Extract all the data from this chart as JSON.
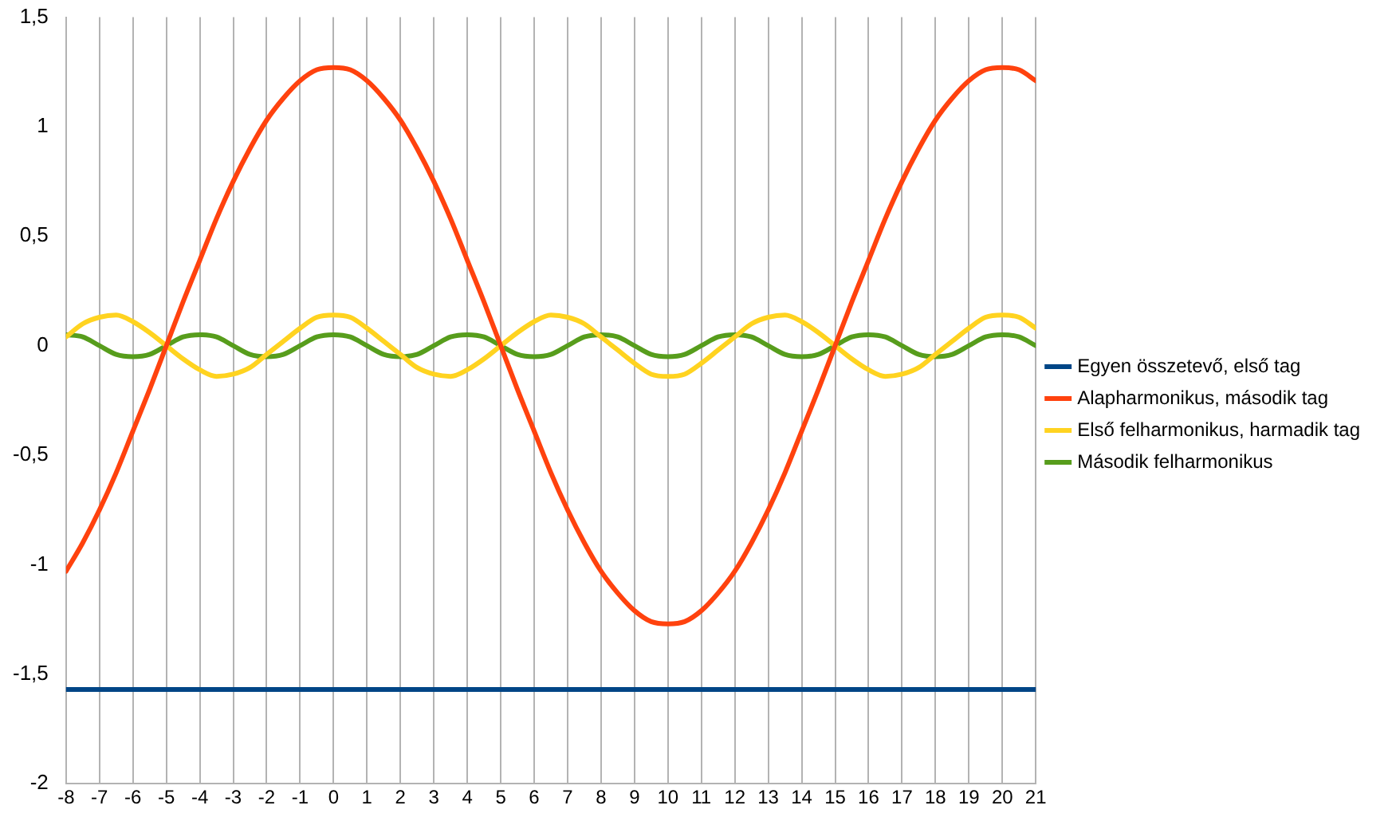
{
  "chart_data": {
    "type": "line",
    "x": [
      -8,
      -7.5,
      -7,
      -6.5,
      -6,
      -5.5,
      -5,
      -4.5,
      -4,
      -3.5,
      -3,
      -2.5,
      -2,
      -1.5,
      -1,
      -0.5,
      0,
      0.5,
      1,
      1.5,
      2,
      2.5,
      3,
      3.5,
      4,
      4.5,
      5,
      5.5,
      6,
      6.5,
      7,
      7.5,
      8,
      8.5,
      9,
      9.5,
      10,
      10.5,
      11,
      11.5,
      12,
      12.5,
      13,
      13.5,
      14,
      14.5,
      15,
      15.5,
      16,
      16.5,
      17,
      17.5,
      18,
      18.5,
      19,
      19.5,
      20,
      20.5,
      21
    ],
    "series": [
      {
        "name": "Egyen összetevő, első tag",
        "color": "#004586",
        "values": [
          -1.57,
          -1.57,
          -1.57,
          -1.57,
          -1.57,
          -1.57,
          -1.57,
          -1.57,
          -1.57,
          -1.57,
          -1.57,
          -1.57,
          -1.57,
          -1.57,
          -1.57,
          -1.57,
          -1.57,
          -1.57,
          -1.57,
          -1.57,
          -1.57,
          -1.57,
          -1.57,
          -1.57,
          -1.57,
          -1.57,
          -1.57,
          -1.57,
          -1.57,
          -1.57,
          -1.57,
          -1.57,
          -1.57,
          -1.57,
          -1.57,
          -1.57,
          -1.57,
          -1.57,
          -1.57,
          -1.57,
          -1.57,
          -1.57,
          -1.57,
          -1.57,
          -1.57,
          -1.57,
          -1.57,
          -1.57,
          -1.57,
          -1.57,
          -1.57,
          -1.57,
          -1.57,
          -1.57,
          -1.57,
          -1.57,
          -1.57,
          -1.57,
          -1.57
        ]
      },
      {
        "name": "Alapharmonikus, második tag",
        "color": "#ff420e",
        "values": [
          -1.03,
          -0.9,
          -0.75,
          -0.58,
          -0.39,
          -0.2,
          0,
          0.2,
          0.39,
          0.58,
          0.75,
          0.9,
          1.03,
          1.13,
          1.21,
          1.26,
          1.27,
          1.26,
          1.21,
          1.13,
          1.03,
          0.9,
          0.75,
          0.58,
          0.39,
          0.2,
          0,
          -0.2,
          -0.39,
          -0.58,
          -0.75,
          -0.9,
          -1.03,
          -1.13,
          -1.21,
          -1.26,
          -1.27,
          -1.26,
          -1.21,
          -1.13,
          -1.03,
          -0.9,
          -0.75,
          -0.58,
          -0.39,
          -0.2,
          0,
          0.2,
          0.39,
          0.58,
          0.75,
          0.9,
          1.03,
          1.13,
          1.21,
          1.26,
          1.27,
          1.26,
          1.21
        ]
      },
      {
        "name": "Első felharmonikus, harmadik tag",
        "color": "#ffd320",
        "values": [
          0.04,
          0.1,
          0.13,
          0.14,
          0.11,
          0.06,
          0,
          -0.06,
          -0.11,
          -0.14,
          -0.13,
          -0.1,
          -0.04,
          0.02,
          0.08,
          0.13,
          0.14,
          0.13,
          0.08,
          0.02,
          -0.04,
          -0.1,
          -0.13,
          -0.14,
          -0.11,
          -0.06,
          0,
          0.06,
          0.11,
          0.14,
          0.13,
          0.1,
          0.04,
          -0.02,
          -0.08,
          -0.13,
          -0.14,
          -0.13,
          -0.08,
          -0.02,
          0.04,
          0.1,
          0.13,
          0.14,
          0.11,
          0.06,
          0,
          -0.06,
          -0.11,
          -0.14,
          -0.13,
          -0.1,
          -0.04,
          0.02,
          0.08,
          0.13,
          0.14,
          0.13,
          0.08
        ]
      },
      {
        "name": "Második felharmonikus",
        "color": "#579d1c",
        "values": [
          0.05,
          0.04,
          0,
          -0.04,
          -0.05,
          -0.04,
          0,
          0.04,
          0.05,
          0.04,
          0,
          -0.04,
          -0.05,
          -0.04,
          0,
          0.04,
          0.05,
          0.04,
          0,
          -0.04,
          -0.05,
          -0.04,
          0,
          0.04,
          0.05,
          0.04,
          0,
          -0.04,
          -0.05,
          -0.04,
          0,
          0.04,
          0.05,
          0.04,
          0,
          -0.04,
          -0.05,
          -0.04,
          0,
          0.04,
          0.05,
          0.04,
          0,
          -0.04,
          -0.05,
          -0.04,
          0,
          0.04,
          0.05,
          0.04,
          0,
          -0.04,
          -0.05,
          -0.04,
          0,
          0.04,
          0.05,
          0.04,
          0
        ]
      }
    ],
    "xlim": [
      -8,
      21
    ],
    "xticks": [
      -8,
      -7,
      -6,
      -5,
      -4,
      -3,
      -2,
      -1,
      0,
      1,
      2,
      3,
      4,
      5,
      6,
      7,
      8,
      9,
      10,
      11,
      12,
      13,
      14,
      15,
      16,
      17,
      18,
      19,
      20,
      21
    ],
    "ylim": [
      -2,
      1.5
    ],
    "yticks": [
      -2,
      {
        "value": -1.5,
        "label": "-1,5"
      },
      -1,
      {
        "value": -0.5,
        "label": "-0,5"
      },
      0,
      {
        "value": 0.5,
        "label": "0,5"
      },
      1,
      {
        "value": 1.5,
        "label": "1,5"
      }
    ],
    "grid": "x",
    "legend": "right",
    "marker": "none",
    "line_style": "solid"
  }
}
